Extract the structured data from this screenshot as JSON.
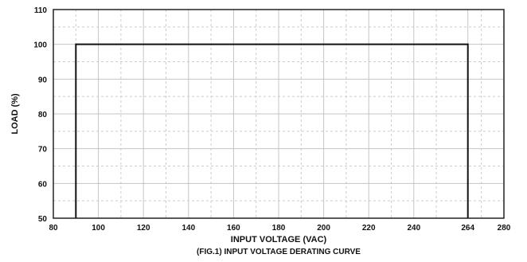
{
  "chart_data": {
    "type": "line",
    "title": "(FIG.1) INPUT VOLTAGE DERATING CURVE",
    "xlabel": "INPUT VOLTAGE (VAC)",
    "ylabel": "LOAD (%)",
    "xlim": [
      80,
      280
    ],
    "ylim": [
      50,
      110
    ],
    "x_ticks": [
      80,
      100,
      120,
      140,
      160,
      180,
      200,
      220,
      240,
      264,
      280
    ],
    "y_ticks": [
      50,
      60,
      70,
      80,
      90,
      100,
      110
    ],
    "grid": true,
    "series": [
      {
        "x": [
          90,
          90,
          264,
          264
        ],
        "y": [
          50,
          100,
          100,
          50
        ]
      }
    ],
    "colors": {
      "line": "#111111",
      "grid": "#cccccc",
      "axis": "#222222"
    }
  }
}
